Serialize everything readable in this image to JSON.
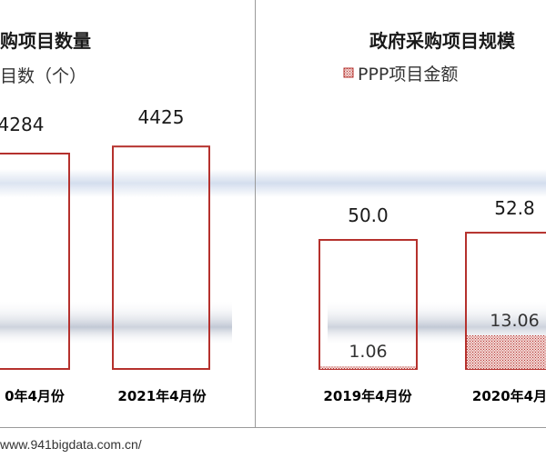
{
  "chart_data": [
    {
      "type": "bar",
      "title": "购项目数量",
      "legend": [
        "目数（个）"
      ],
      "categories": [
        "0年4月份",
        "2021年4月份"
      ],
      "series": [
        {
          "name": "目数（个）",
          "values": [
            4284,
            4425
          ]
        }
      ],
      "value_labels": [
        "4284",
        "4425"
      ],
      "bar_color": "#b5312d",
      "grid": false
    },
    {
      "type": "bar",
      "title": "政府采购项目规模",
      "legend": [
        "PPP项目金额"
      ],
      "categories": [
        "2019年4月份",
        "2020年4月"
      ],
      "series": [
        {
          "name": "",
          "values": [
            50.0,
            52.8
          ]
        },
        {
          "name": "PPP项目金额",
          "values": [
            1.06,
            13.06
          ]
        }
      ],
      "total_labels": [
        "50.0",
        "52.8"
      ],
      "ppp_labels": [
        "1.06",
        "13.06"
      ],
      "bar_color": "#b5312d",
      "grid": false
    }
  ],
  "footer": {
    "url": "www.941bigdata.com.cn/"
  }
}
